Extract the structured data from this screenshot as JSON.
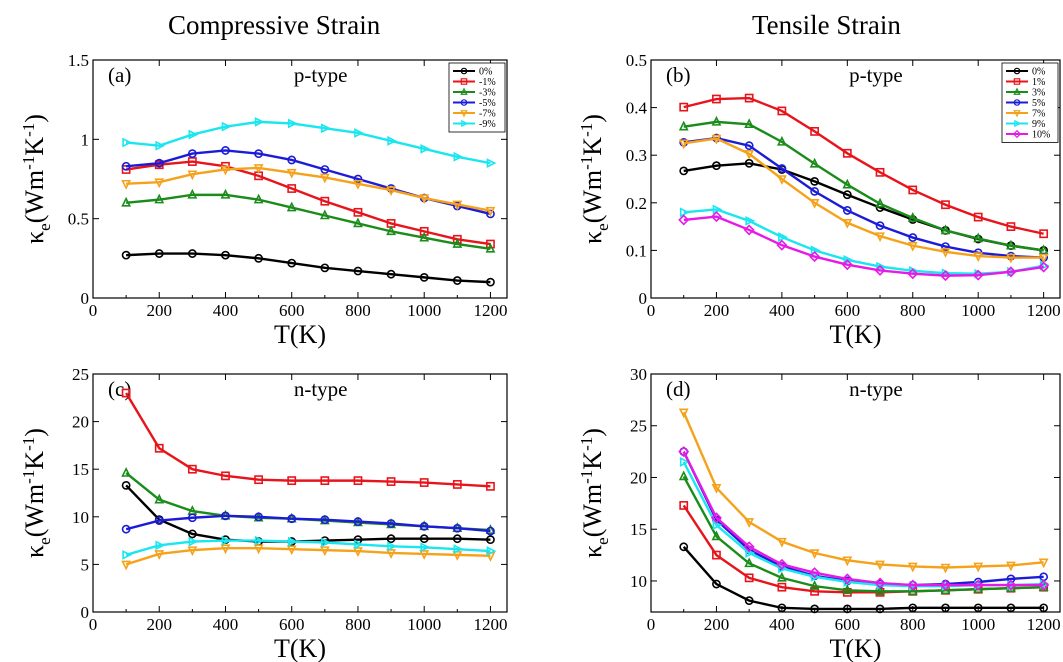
{
  "figure": {
    "left_title": "Compressive Strain",
    "right_title": "Tensile Strain"
  },
  "colors": {
    "0%": "#000000",
    "1%": "#e8141c",
    "3%": "#1a8c1a",
    "5%": "#1c1cd8",
    "7%": "#f5a21a",
    "9%": "#1ae6f0",
    "10%": "#e61ae6"
  },
  "chart_data": [
    {
      "id": "a",
      "type": "line",
      "panel_label": "(a)",
      "title": "p-type",
      "xlabel": "T(K)",
      "ylabel": "κe(Wm-1K-1)",
      "xlim": [
        0,
        1250
      ],
      "ylim": [
        0,
        1.5
      ],
      "xticks": [
        0,
        200,
        400,
        600,
        800,
        1000,
        1200
      ],
      "yticks": [
        0,
        0.5,
        1,
        1.5
      ],
      "ytick_labels": [
        "0",
        "0.5",
        "1",
        "1.5"
      ],
      "legend_position": "top-right",
      "x": [
        100,
        200,
        300,
        400,
        500,
        600,
        700,
        800,
        900,
        1000,
        1100,
        1200
      ],
      "series": [
        {
          "name": "0%",
          "color_key": "0%",
          "marker": "circle",
          "values": [
            0.27,
            0.28,
            0.28,
            0.27,
            0.25,
            0.22,
            0.19,
            0.17,
            0.15,
            0.13,
            0.11,
            0.1
          ]
        },
        {
          "name": "-1%",
          "color_key": "1%",
          "marker": "square",
          "values": [
            0.81,
            0.84,
            0.86,
            0.83,
            0.77,
            0.69,
            0.61,
            0.54,
            0.47,
            0.42,
            0.37,
            0.34
          ]
        },
        {
          "name": "-3%",
          "color_key": "3%",
          "marker": "triangle-up",
          "values": [
            0.6,
            0.62,
            0.65,
            0.65,
            0.62,
            0.57,
            0.52,
            0.47,
            0.42,
            0.38,
            0.34,
            0.31
          ]
        },
        {
          "name": "-5%",
          "color_key": "5%",
          "marker": "circle",
          "values": [
            0.83,
            0.85,
            0.91,
            0.93,
            0.91,
            0.87,
            0.81,
            0.75,
            0.69,
            0.63,
            0.58,
            0.53
          ]
        },
        {
          "name": "-7%",
          "color_key": "7%",
          "marker": "triangle-down",
          "values": [
            0.72,
            0.73,
            0.78,
            0.81,
            0.82,
            0.79,
            0.76,
            0.72,
            0.68,
            0.63,
            0.59,
            0.55
          ]
        },
        {
          "name": "-9%",
          "color_key": "9%",
          "marker": "triangle-right",
          "values": [
            0.98,
            0.96,
            1.03,
            1.08,
            1.11,
            1.1,
            1.07,
            1.04,
            0.99,
            0.94,
            0.89,
            0.85
          ]
        }
      ]
    },
    {
      "id": "b",
      "type": "line",
      "panel_label": "(b)",
      "title": "p-type",
      "xlabel": "T(K)",
      "ylabel": "κe(Wm-1K-1)",
      "xlim": [
        0,
        1250
      ],
      "ylim": [
        0,
        0.5
      ],
      "xticks": [
        0,
        200,
        400,
        600,
        800,
        1000,
        1200
      ],
      "yticks": [
        0,
        0.1,
        0.2,
        0.3,
        0.4,
        0.5
      ],
      "ytick_labels": [
        "0",
        "0.1",
        "0.2",
        "0.3",
        "0.4",
        "0.5"
      ],
      "legend_position": "top-right",
      "x": [
        100,
        200,
        300,
        400,
        500,
        600,
        700,
        800,
        900,
        1000,
        1100,
        1200
      ],
      "series": [
        {
          "name": "0%",
          "color_key": "0%",
          "marker": "circle",
          "values": [
            0.267,
            0.278,
            0.283,
            0.27,
            0.245,
            0.217,
            0.19,
            0.165,
            0.142,
            0.124,
            0.11,
            0.1
          ]
        },
        {
          "name": "1%",
          "color_key": "1%",
          "marker": "square",
          "values": [
            0.401,
            0.418,
            0.42,
            0.393,
            0.35,
            0.304,
            0.264,
            0.227,
            0.196,
            0.17,
            0.15,
            0.135
          ]
        },
        {
          "name": "3%",
          "color_key": "3%",
          "marker": "triangle-up",
          "values": [
            0.36,
            0.37,
            0.365,
            0.328,
            0.282,
            0.238,
            0.198,
            0.168,
            0.142,
            0.125,
            0.11,
            0.1
          ]
        },
        {
          "name": "5%",
          "color_key": "5%",
          "marker": "circle",
          "values": [
            0.327,
            0.336,
            0.32,
            0.272,
            0.224,
            0.184,
            0.152,
            0.127,
            0.108,
            0.095,
            0.088,
            0.085
          ]
        },
        {
          "name": "7%",
          "color_key": "7%",
          "marker": "triangle-down",
          "values": [
            0.325,
            0.335,
            0.303,
            0.25,
            0.2,
            0.158,
            0.13,
            0.11,
            0.097,
            0.088,
            0.085,
            0.085
          ]
        },
        {
          "name": "9%",
          "color_key": "9%",
          "marker": "triangle-right",
          "values": [
            0.18,
            0.186,
            0.162,
            0.128,
            0.1,
            0.08,
            0.066,
            0.057,
            0.052,
            0.051,
            0.055,
            0.068
          ]
        },
        {
          "name": "10%",
          "color_key": "10%",
          "marker": "diamond",
          "values": [
            0.164,
            0.171,
            0.143,
            0.111,
            0.087,
            0.07,
            0.058,
            0.051,
            0.047,
            0.048,
            0.055,
            0.065
          ]
        }
      ]
    },
    {
      "id": "c",
      "type": "line",
      "panel_label": "(c)",
      "title": "n-type",
      "xlabel": "T(K)",
      "ylabel": "κe(Wm-1K-1)",
      "xlim": [
        0,
        1250
      ],
      "ylim": [
        0,
        25
      ],
      "xticks": [
        0,
        200,
        400,
        600,
        800,
        1000,
        1200
      ],
      "yticks": [
        0,
        5,
        10,
        15,
        20,
        25
      ],
      "ytick_labels": [
        "0",
        "5",
        "10",
        "15",
        "20",
        "25"
      ],
      "x": [
        100,
        200,
        300,
        400,
        500,
        600,
        700,
        800,
        900,
        1000,
        1100,
        1200
      ],
      "series": [
        {
          "name": "0%",
          "color_key": "0%",
          "marker": "circle",
          "values": [
            13.3,
            9.7,
            8.2,
            7.6,
            7.4,
            7.4,
            7.5,
            7.6,
            7.7,
            7.7,
            7.7,
            7.6
          ]
        },
        {
          "name": "-1%",
          "color_key": "1%",
          "marker": "square",
          "values": [
            23.0,
            17.2,
            15.0,
            14.3,
            13.9,
            13.8,
            13.8,
            13.8,
            13.7,
            13.6,
            13.4,
            13.2
          ]
        },
        {
          "name": "-3%",
          "color_key": "3%",
          "marker": "triangle-up",
          "values": [
            14.6,
            11.8,
            10.6,
            10.1,
            9.9,
            9.8,
            9.6,
            9.4,
            9.2,
            9.0,
            8.8,
            8.6
          ]
        },
        {
          "name": "-5%",
          "color_key": "5%",
          "marker": "circle",
          "values": [
            8.7,
            9.6,
            9.9,
            10.1,
            10.0,
            9.8,
            9.7,
            9.5,
            9.3,
            9.0,
            8.8,
            8.5
          ]
        },
        {
          "name": "-7%",
          "color_key": "7%",
          "marker": "triangle-down",
          "values": [
            5.0,
            6.1,
            6.5,
            6.7,
            6.7,
            6.6,
            6.5,
            6.4,
            6.2,
            6.1,
            6.0,
            5.9
          ]
        },
        {
          "name": "-9%",
          "color_key": "9%",
          "marker": "triangle-right",
          "values": [
            6.0,
            7.0,
            7.4,
            7.5,
            7.5,
            7.4,
            7.3,
            7.1,
            6.9,
            6.8,
            6.6,
            6.4
          ]
        }
      ]
    },
    {
      "id": "d",
      "type": "line",
      "panel_label": "(d)",
      "title": "n-type",
      "xlabel": "T(K)",
      "ylabel": "κe(Wm-1K-1)",
      "xlim": [
        0,
        1250
      ],
      "ylim": [
        7,
        30
      ],
      "xticks": [
        0,
        200,
        400,
        600,
        800,
        1000,
        1200
      ],
      "yticks": [
        10,
        15,
        20,
        25,
        30
      ],
      "ytick_labels": [
        "10",
        "15",
        "20",
        "25",
        "30"
      ],
      "x": [
        100,
        200,
        300,
        400,
        500,
        600,
        700,
        800,
        900,
        1000,
        1100,
        1200
      ],
      "series": [
        {
          "name": "0%",
          "color_key": "0%",
          "marker": "circle",
          "values": [
            13.3,
            9.7,
            8.1,
            7.4,
            7.3,
            7.3,
            7.3,
            7.4,
            7.4,
            7.4,
            7.4,
            7.4
          ]
        },
        {
          "name": "1%",
          "color_key": "1%",
          "marker": "square",
          "values": [
            17.3,
            12.5,
            10.3,
            9.4,
            9.0,
            8.9,
            8.9,
            9.0,
            9.1,
            9.2,
            9.3,
            9.4
          ]
        },
        {
          "name": "3%",
          "color_key": "3%",
          "marker": "triangle-up",
          "values": [
            20.1,
            14.3,
            11.7,
            10.3,
            9.5,
            9.1,
            9.0,
            9.0,
            9.1,
            9.2,
            9.3,
            9.4
          ]
        },
        {
          "name": "5%",
          "color_key": "5%",
          "marker": "circle",
          "values": [
            22.5,
            15.9,
            13.0,
            11.4,
            10.5,
            10.0,
            9.7,
            9.6,
            9.7,
            9.9,
            10.2,
            10.4
          ]
        },
        {
          "name": "7%",
          "color_key": "7%",
          "marker": "triangle-down",
          "values": [
            26.3,
            19.0,
            15.7,
            13.8,
            12.7,
            12.0,
            11.6,
            11.4,
            11.3,
            11.4,
            11.5,
            11.8
          ]
        },
        {
          "name": "9%",
          "color_key": "9%",
          "marker": "triangle-right",
          "values": [
            21.5,
            15.4,
            12.7,
            11.2,
            10.4,
            9.9,
            9.6,
            9.5,
            9.5,
            9.6,
            9.6,
            9.7
          ]
        },
        {
          "name": "10%",
          "color_key": "10%",
          "marker": "diamond",
          "values": [
            22.5,
            16.1,
            13.3,
            11.6,
            10.8,
            10.2,
            9.8,
            9.6,
            9.6,
            9.6,
            9.6,
            9.6
          ]
        }
      ]
    }
  ]
}
